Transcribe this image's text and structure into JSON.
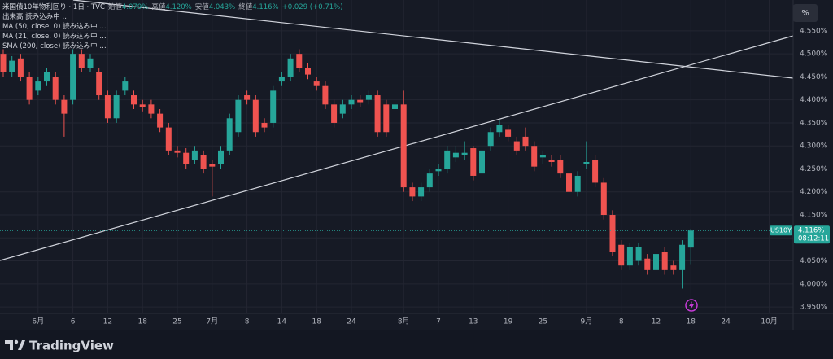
{
  "chart_data": {
    "type": "candlestick",
    "title": "米国債10年物利回り · 1日 · TVC",
    "ohlc_header": [
      {
        "name": "始値",
        "value": "4.079%"
      },
      {
        "name": "高値",
        "value": "4.120%"
      },
      {
        "name": "安値",
        "value": "4.043%"
      },
      {
        "name": "終値",
        "value": "4.116%"
      }
    ],
    "change": "+0.029 (+0.71%)",
    "indicators": [
      "出来高 読み込み中 …",
      "MA (50, close, 0) 読み込み中 …",
      "MA (21, close, 0) 読み込み中 …",
      "SMA (200, close) 読み込み中 …"
    ],
    "scale_button": "%",
    "brand": "TradingView",
    "categories": [
      null,
      null,
      null,
      null,
      "6月",
      null,
      null,
      null,
      "6",
      null,
      null,
      null,
      "12",
      null,
      null,
      null,
      "18",
      null,
      null,
      null,
      "25",
      null,
      null,
      null,
      "7月",
      null,
      null,
      null,
      "8",
      null,
      null,
      null,
      "14",
      null,
      null,
      null,
      "18",
      null,
      null,
      null,
      "24",
      null,
      null,
      null,
      null,
      null,
      "8月",
      null,
      null,
      null,
      "7",
      null,
      null,
      null,
      "13",
      null,
      null,
      null,
      "19",
      null,
      null,
      null,
      "25",
      null,
      null,
      null,
      null,
      "9月",
      null,
      null,
      null,
      "8",
      null,
      null,
      null,
      "12",
      null,
      null,
      null,
      "18",
      null,
      null,
      null,
      "24",
      null,
      null,
      null,
      null,
      "10月",
      null
    ],
    "open": [
      4.5,
      4.46,
      4.49,
      4.45,
      4.42,
      4.44,
      4.45,
      4.4,
      4.4,
      4.5,
      4.47,
      4.46,
      4.41,
      4.36,
      4.42,
      4.41,
      4.39,
      4.39,
      4.37,
      4.34,
      4.29,
      4.285,
      4.27,
      4.28,
      4.26,
      4.26,
      4.29,
      4.33,
      4.41,
      4.4,
      4.35,
      4.35,
      4.44,
      4.45,
      4.5,
      4.47,
      4.44,
      4.43,
      4.39,
      4.37,
      4.39,
      4.4,
      4.4,
      4.41,
      4.39,
      4.38,
      4.39,
      4.21,
      4.19,
      4.21,
      4.245,
      4.25,
      4.275,
      4.28,
      4.295,
      4.24,
      4.3,
      4.33,
      4.335,
      4.31,
      4.32,
      4.3,
      4.275,
      4.27,
      4.27,
      4.24,
      4.2,
      4.26,
      4.27,
      4.22,
      4.15,
      4.085,
      4.04,
      4.05,
      4.055,
      4.03,
      4.07,
      4.04,
      4.03,
      4.079,
      null,
      null,
      null,
      null,
      null,
      null,
      null,
      null,
      null,
      null
    ],
    "high": [
      4.51,
      4.495,
      4.5,
      4.46,
      4.45,
      4.47,
      4.46,
      4.41,
      4.51,
      4.51,
      4.5,
      4.47,
      4.42,
      4.42,
      4.45,
      4.42,
      4.4,
      4.4,
      4.38,
      4.35,
      4.3,
      4.295,
      4.3,
      4.29,
      4.27,
      4.3,
      4.37,
      4.41,
      4.42,
      4.41,
      4.36,
      4.43,
      4.46,
      4.5,
      4.51,
      4.48,
      4.45,
      4.44,
      4.4,
      4.4,
      4.41,
      4.41,
      4.42,
      4.42,
      4.4,
      4.4,
      4.42,
      4.22,
      4.22,
      4.25,
      4.26,
      4.3,
      4.3,
      4.31,
      4.3,
      4.3,
      4.34,
      4.355,
      4.345,
      4.32,
      4.34,
      4.31,
      4.29,
      4.28,
      4.28,
      4.25,
      4.245,
      4.31,
      4.28,
      4.23,
      4.16,
      4.095,
      4.09,
      4.09,
      4.065,
      4.075,
      4.08,
      4.05,
      4.095,
      4.12,
      null,
      null,
      null,
      null,
      null,
      null,
      null,
      null,
      null,
      null
    ],
    "low": [
      4.45,
      4.45,
      4.44,
      4.39,
      4.41,
      4.43,
      4.39,
      4.32,
      4.39,
      4.46,
      4.46,
      4.4,
      4.35,
      4.35,
      4.41,
      4.38,
      4.375,
      4.36,
      4.33,
      4.28,
      4.275,
      4.25,
      4.26,
      4.24,
      4.19,
      4.25,
      4.28,
      4.32,
      4.39,
      4.32,
      4.33,
      4.34,
      4.43,
      4.44,
      4.46,
      4.445,
      4.42,
      4.38,
      4.34,
      4.36,
      4.38,
      4.385,
      4.39,
      4.32,
      4.32,
      4.37,
      4.2,
      4.18,
      4.18,
      4.2,
      4.235,
      4.24,
      4.265,
      4.27,
      4.225,
      4.23,
      4.29,
      4.32,
      4.31,
      4.28,
      4.29,
      4.245,
      4.26,
      4.255,
      4.23,
      4.19,
      4.19,
      4.25,
      4.21,
      4.14,
      4.06,
      4.03,
      4.03,
      4.04,
      4.02,
      4.0,
      4.02,
      4.02,
      3.99,
      4.043,
      null,
      null,
      null,
      null,
      null,
      null,
      null,
      null,
      null,
      null
    ],
    "close": [
      4.46,
      4.485,
      4.45,
      4.4,
      4.44,
      4.46,
      4.4,
      4.37,
      4.5,
      4.47,
      4.49,
      4.41,
      4.36,
      4.41,
      4.44,
      4.39,
      4.385,
      4.37,
      4.34,
      4.29,
      4.285,
      4.26,
      4.29,
      4.25,
      4.255,
      4.29,
      4.36,
      4.4,
      4.4,
      4.33,
      4.34,
      4.42,
      4.45,
      4.49,
      4.47,
      4.455,
      4.43,
      4.39,
      4.35,
      4.39,
      4.4,
      4.395,
      4.41,
      4.33,
      4.33,
      4.39,
      4.21,
      4.19,
      4.21,
      4.24,
      4.25,
      4.29,
      4.285,
      4.285,
      4.235,
      4.29,
      4.33,
      4.345,
      4.32,
      4.29,
      4.3,
      4.255,
      4.28,
      4.265,
      4.24,
      4.2,
      4.235,
      4.265,
      4.22,
      4.15,
      4.07,
      4.04,
      4.08,
      4.08,
      4.03,
      4.065,
      4.03,
      4.03,
      4.085,
      4.116,
      null,
      null,
      null,
      null,
      null,
      null,
      null,
      null,
      null,
      null
    ],
    "up_color": "#26a69a",
    "down_color": "#ef5350",
    "ylim": [
      3.936,
      4.617
    ],
    "yticks": [
      {
        "value": 3.95,
        "label": "3.950%"
      },
      {
        "value": 4.0,
        "label": "4.000%"
      },
      {
        "value": 4.05,
        "label": "4.050%"
      },
      {
        "value": 4.1,
        "label": "4.100%"
      },
      {
        "value": 4.15,
        "label": "4.150%"
      },
      {
        "value": 4.2,
        "label": "4.200%"
      },
      {
        "value": 4.25,
        "label": "4.250%"
      },
      {
        "value": 4.3,
        "label": "4.300%"
      },
      {
        "value": 4.35,
        "label": "4.350%"
      },
      {
        "value": 4.4,
        "label": "4.400%"
      },
      {
        "value": 4.45,
        "label": "4.450%"
      },
      {
        "value": 4.5,
        "label": "4.500%"
      },
      {
        "value": 4.55,
        "label": "4.550%"
      }
    ],
    "grid": true,
    "last_price": {
      "value": 4.116,
      "label": "4.116%",
      "symbol": "US10Y",
      "countdown": "08:12:11"
    }
  }
}
